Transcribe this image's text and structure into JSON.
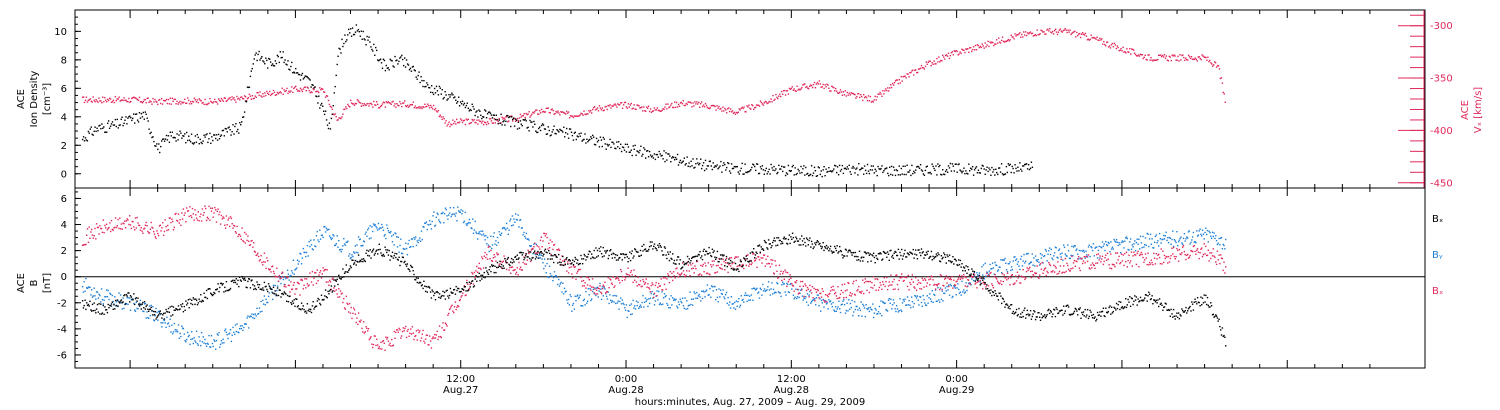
{
  "chart_data": [
    {
      "type": "scatter",
      "panel": "ace-density-speed",
      "ylabel_lines": [
        "ACE",
        "Ion Density",
        "[cm⁻³]"
      ],
      "ylabel_right_lines": [
        "ACE",
        "Vₓ [km/s]"
      ],
      "ylim": [
        -1,
        11.5
      ],
      "yticks": [
        "0",
        "2",
        "4",
        "6",
        "8",
        "10"
      ],
      "y2lim": [
        -455,
        -285
      ],
      "y2ticks": [
        "-300",
        "-350",
        "-400",
        "-450"
      ],
      "colors": {
        "density": "#000000",
        "vx": "#e0285a"
      },
      "series": [
        {
          "key": "density",
          "color": "#000000",
          "points": [
            [
              -27.5,
              2.5
            ],
            [
              -26.5,
              3.2
            ],
            [
              -25,
              3.5
            ],
            [
              -23,
              4.2
            ],
            [
              -22,
              1.8
            ],
            [
              -21,
              2.8
            ],
            [
              -19.5,
              2.5
            ],
            [
              -18,
              2.6
            ],
            [
              -16,
              3.3
            ],
            [
              -15,
              8.5
            ],
            [
              -14,
              7.8
            ],
            [
              -13,
              8.3
            ],
            [
              -12,
              7.2
            ],
            [
              -11,
              6.5
            ],
            [
              -10,
              4.5
            ],
            [
              -9.5,
              3.0
            ],
            [
              -9,
              8.2
            ],
            [
              -8.5,
              9.6
            ],
            [
              -7.5,
              10.2
            ],
            [
              -6.5,
              9.0
            ],
            [
              -5.5,
              7.5
            ],
            [
              -4.5,
              8.1
            ],
            [
              -3.5,
              7.3
            ],
            [
              -2.5,
              6.2
            ],
            [
              -1.5,
              5.8
            ],
            [
              0,
              5.0
            ],
            [
              1,
              4.5
            ],
            [
              2,
              4.0
            ],
            [
              4,
              3.6
            ],
            [
              6,
              3.2
            ],
            [
              8,
              2.8
            ],
            [
              10,
              2.3
            ],
            [
              12,
              1.8
            ],
            [
              14,
              1.4
            ],
            [
              16,
              1.0
            ],
            [
              18,
              0.6
            ],
            [
              20,
              0.4
            ],
            [
              22,
              0.4
            ],
            [
              24,
              0.3
            ],
            [
              26,
              0.2
            ],
            [
              28,
              0.4
            ],
            [
              30,
              0.3
            ],
            [
              32,
              0.3
            ],
            [
              34,
              0.35
            ],
            [
              36,
              0.4
            ],
            [
              38,
              0.3
            ],
            [
              40,
              0.4
            ],
            [
              41.5,
              0.5
            ]
          ]
        },
        {
          "key": "vx",
          "color": "#e0285a",
          "points": [
            [
              -27.5,
              -370
            ],
            [
              -26,
              -370
            ],
            [
              -24,
              -370
            ],
            [
              -22,
              -372
            ],
            [
              -20,
              -371
            ],
            [
              -18,
              -372
            ],
            [
              -16,
              -369
            ],
            [
              -14,
              -364
            ],
            [
              -12,
              -360
            ],
            [
              -10,
              -361
            ],
            [
              -9,
              -390
            ],
            [
              -8,
              -372
            ],
            [
              -6,
              -375
            ],
            [
              -4,
              -374
            ],
            [
              -2,
              -377
            ],
            [
              -1,
              -393
            ],
            [
              0,
              -391
            ],
            [
              2,
              -391
            ],
            [
              4,
              -388
            ],
            [
              6,
              -380
            ],
            [
              8,
              -385
            ],
            [
              10,
              -378
            ],
            [
              12,
              -375
            ],
            [
              14,
              -380
            ],
            [
              16,
              -373
            ],
            [
              18,
              -376
            ],
            [
              20,
              -382
            ],
            [
              22,
              -373
            ],
            [
              24,
              -360
            ],
            [
              26,
              -355
            ],
            [
              28,
              -365
            ],
            [
              30,
              -370
            ],
            [
              32,
              -350
            ],
            [
              34,
              -335
            ],
            [
              36,
              -325
            ],
            [
              38,
              -318
            ],
            [
              40,
              -310
            ],
            [
              42,
              -305
            ],
            [
              44,
              -305
            ],
            [
              46,
              -312
            ],
            [
              48,
              -322
            ],
            [
              50,
              -330
            ],
            [
              52,
              -330
            ],
            [
              54,
              -330
            ],
            [
              55,
              -340
            ],
            [
              55.5,
              -375
            ]
          ]
        }
      ]
    },
    {
      "type": "scatter",
      "panel": "ace-imf-b",
      "ylabel_lines": [
        "ACE",
        "B",
        "[nT]"
      ],
      "ylim": [
        -7,
        6.8
      ],
      "yticks": [
        "6",
        "4",
        "2",
        "0",
        "-2",
        "-4",
        "-6"
      ],
      "zero_line": true,
      "legend": [
        {
          "label": "Bₓ",
          "color": "#000000"
        },
        {
          "label": "Bᵧ",
          "color": "#1e7fd6"
        },
        {
          "label": "Bₓ",
          "color": "#e0285a"
        }
      ],
      "series": [
        {
          "key": "bx",
          "color": "#000000",
          "points": [
            [
              -27.5,
              -2.0
            ],
            [
              -26,
              -2.5
            ],
            [
              -24,
              -1.5
            ],
            [
              -22,
              -3.0
            ],
            [
              -20,
              -2.2
            ],
            [
              -18,
              -1.0
            ],
            [
              -16,
              -0.3
            ],
            [
              -14,
              -0.8
            ],
            [
              -12,
              -2.0
            ],
            [
              -11,
              -2.5
            ],
            [
              -10,
              -1.5
            ],
            [
              -8,
              1.0
            ],
            [
              -6,
              2.2
            ],
            [
              -4,
              1.0
            ],
            [
              -2,
              -1.5
            ],
            [
              0,
              -1.0
            ],
            [
              2,
              0.5
            ],
            [
              4,
              1.5
            ],
            [
              6,
              1.8
            ],
            [
              8,
              1.0
            ],
            [
              10,
              2.0
            ],
            [
              12,
              1.5
            ],
            [
              14,
              2.5
            ],
            [
              16,
              1.0
            ],
            [
              18,
              2.0
            ],
            [
              20,
              0.7
            ],
            [
              22,
              2.5
            ],
            [
              24,
              3.0
            ],
            [
              26,
              2.5
            ],
            [
              28,
              1.8
            ],
            [
              30,
              1.5
            ],
            [
              32,
              1.8
            ],
            [
              34,
              1.8
            ],
            [
              36,
              1.2
            ],
            [
              38,
              -0.5
            ],
            [
              40,
              -2.5
            ],
            [
              42,
              -3.0
            ],
            [
              44,
              -2.5
            ],
            [
              46,
              -3.0
            ],
            [
              48,
              -2.0
            ],
            [
              50,
              -1.5
            ],
            [
              52,
              -3.0
            ],
            [
              54,
              -1.5
            ],
            [
              55,
              -3.5
            ],
            [
              55.5,
              -5.0
            ]
          ]
        },
        {
          "key": "by",
          "color": "#1e7fd6",
          "points": [
            [
              -27.5,
              -0.5
            ],
            [
              -26,
              -1.5
            ],
            [
              -24,
              -2.0
            ],
            [
              -22,
              -3.0
            ],
            [
              -20,
              -4.5
            ],
            [
              -18,
              -5.0
            ],
            [
              -16,
              -4.0
            ],
            [
              -14,
              -1.5
            ],
            [
              -12,
              1.0
            ],
            [
              -10,
              3.5
            ],
            [
              -8,
              2.0
            ],
            [
              -6,
              4.0
            ],
            [
              -4,
              2.0
            ],
            [
              -2,
              4.5
            ],
            [
              0,
              5.0
            ],
            [
              2,
              2.5
            ],
            [
              4,
              4.5
            ],
            [
              6,
              1.0
            ],
            [
              8,
              -2.0
            ],
            [
              10,
              -1.0
            ],
            [
              12,
              -2.5
            ],
            [
              14,
              -1.5
            ],
            [
              16,
              -2.0
            ],
            [
              18,
              -1.0
            ],
            [
              20,
              -2.0
            ],
            [
              22,
              -0.8
            ],
            [
              24,
              -1.0
            ],
            [
              26,
              -2.0
            ],
            [
              28,
              -2.3
            ],
            [
              30,
              -2.5
            ],
            [
              32,
              -2.0
            ],
            [
              34,
              -1.5
            ],
            [
              36,
              -1.0
            ],
            [
              38,
              0.5
            ],
            [
              40,
              1.0
            ],
            [
              42,
              1.5
            ],
            [
              44,
              2.0
            ],
            [
              46,
              2.0
            ],
            [
              48,
              2.5
            ],
            [
              50,
              2.8
            ],
            [
              52,
              3.0
            ],
            [
              54,
              3.3
            ],
            [
              55,
              3.0
            ],
            [
              55.5,
              2.5
            ]
          ]
        },
        {
          "key": "bz",
          "color": "#e0285a",
          "points": [
            [
              -27.5,
              3.0
            ],
            [
              -26,
              3.8
            ],
            [
              -24,
              4.2
            ],
            [
              -22,
              3.5
            ],
            [
              -20,
              4.8
            ],
            [
              -18,
              5.0
            ],
            [
              -16,
              3.5
            ],
            [
              -14,
              1.0
            ],
            [
              -12,
              -1.0
            ],
            [
              -10,
              0.5
            ],
            [
              -8,
              -2.5
            ],
            [
              -6,
              -5.5
            ],
            [
              -4,
              -4.0
            ],
            [
              -2,
              -5.0
            ],
            [
              0,
              -1.5
            ],
            [
              2,
              2.0
            ],
            [
              4,
              0.5
            ],
            [
              6,
              3.0
            ],
            [
              8,
              0.5
            ],
            [
              10,
              -1.0
            ],
            [
              12,
              0.5
            ],
            [
              14,
              -1.0
            ],
            [
              16,
              0.5
            ],
            [
              18,
              0.8
            ],
            [
              20,
              1.0
            ],
            [
              22,
              1.5
            ],
            [
              24,
              -0.5
            ],
            [
              26,
              -1.5
            ],
            [
              28,
              -1.0
            ],
            [
              30,
              -0.5
            ],
            [
              32,
              -0.3
            ],
            [
              34,
              -0.5
            ],
            [
              36,
              -0.2
            ],
            [
              38,
              -0.3
            ],
            [
              40,
              0.0
            ],
            [
              42,
              0.5
            ],
            [
              44,
              1.0
            ],
            [
              46,
              1.2
            ],
            [
              48,
              1.3
            ],
            [
              50,
              1.5
            ],
            [
              52,
              1.8
            ],
            [
              54,
              2.0
            ],
            [
              55,
              1.5
            ],
            [
              55.5,
              0.2
            ]
          ]
        }
      ]
    }
  ],
  "x_axis": {
    "title": "hours:minutes, Aug. 27, 2009 – Aug. 29, 2009",
    "range_hours": [
      -28,
      70
    ],
    "ticks": [
      {
        "h": 0,
        "time": "12:00",
        "date": "Aug.27"
      },
      {
        "h": 12,
        "time": "0:00",
        "date": "Aug.28"
      },
      {
        "h": 24,
        "time": "12:00",
        "date": "Aug.28"
      },
      {
        "h": 36,
        "time": "0:00",
        "date": "Aug.29"
      }
    ]
  }
}
